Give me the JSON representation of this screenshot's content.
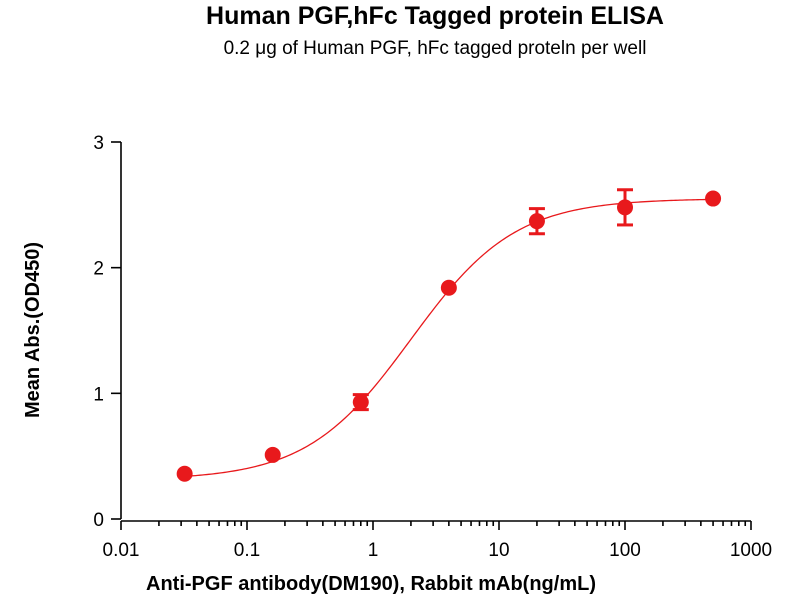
{
  "chart_data": {
    "type": "scatter",
    "title": "Human PGF,hFc Tagged protein ELISA",
    "subtitle": "0.2 μg of Human PGF, hFc tagged proteln per well",
    "xlabel": "Anti-PGF antibody(DM190), Rabbit mAb(ng/mL)",
    "ylabel": "Mean Abs.(OD450)",
    "xscale": "log",
    "xlim": [
      0.01,
      1000
    ],
    "ylim": [
      0,
      3
    ],
    "xticks": [
      0.01,
      0.1,
      1,
      10,
      100,
      1000
    ],
    "xtick_labels": [
      "0.01",
      "0.1",
      "1",
      "10",
      "100",
      "1000"
    ],
    "yticks": [
      0,
      1,
      2,
      3
    ],
    "ytick_labels": [
      "0",
      "1",
      "2",
      "3"
    ],
    "grid": false,
    "legend": "none",
    "color": "#e8191c",
    "points": [
      {
        "x": 0.032,
        "y": 0.36,
        "err": 0.02
      },
      {
        "x": 0.16,
        "y": 0.51,
        "err": 0.02
      },
      {
        "x": 0.8,
        "y": 0.93,
        "err": 0.06
      },
      {
        "x": 4,
        "y": 1.84,
        "err": 0.02
      },
      {
        "x": 20,
        "y": 2.37,
        "err": 0.1
      },
      {
        "x": 100,
        "y": 2.48,
        "err": 0.14
      },
      {
        "x": 500,
        "y": 2.55,
        "err": 0.02
      }
    ],
    "fit": {
      "model": "4PL",
      "bottom": 0.31,
      "top": 2.55,
      "ec50": 2.0,
      "hill": 1.05
    }
  }
}
